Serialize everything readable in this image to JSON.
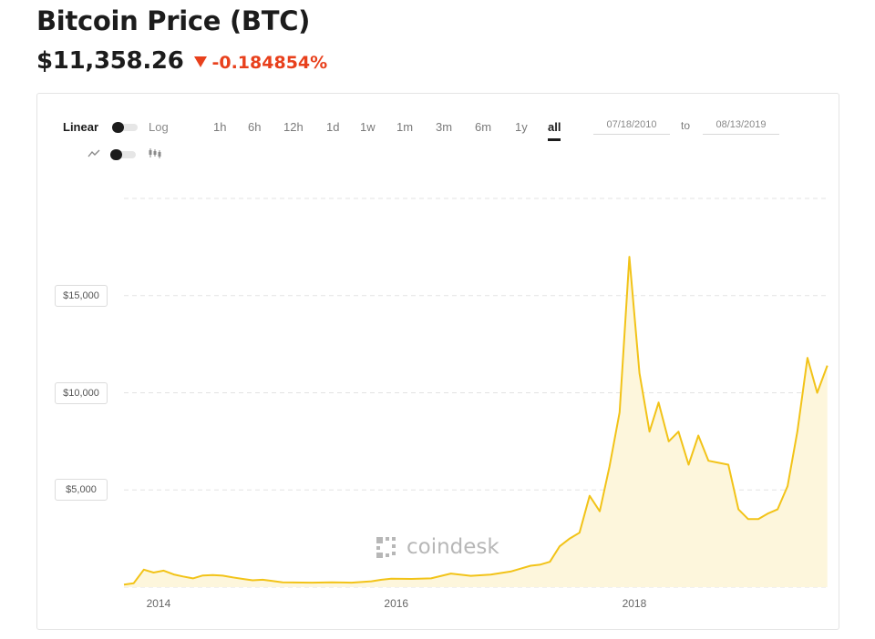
{
  "header": {
    "title": "Bitcoin Price (BTC)",
    "price": "$11,358.26",
    "change": "-0.184854%",
    "change_color": "#e8401c",
    "change_icon": "triangle-down-icon"
  },
  "toolbar": {
    "scale_linear": "Linear",
    "scale_log": "Log",
    "ranges": [
      "1h",
      "6h",
      "12h",
      "1d",
      "1w",
      "1m",
      "3m",
      "6m",
      "1y",
      "all"
    ],
    "active_range": "all",
    "date_from": "07/18/2010",
    "date_to_label": "to",
    "date_to": "08/13/2019",
    "chart_style_icons": [
      "line-chart-icon",
      "candlestick-icon"
    ]
  },
  "watermark": "coindesk",
  "colors": {
    "line": "#f2c318",
    "fill": "#fdf6dc",
    "grid": "#e3e3e3"
  },
  "chart_data": {
    "type": "area",
    "title": "",
    "xlabel": "",
    "ylabel": "",
    "ylim": [
      0,
      20000
    ],
    "grid": true,
    "x_ticks": [
      "2014",
      "2016",
      "2018"
    ],
    "y_ticks": [
      "$5,000",
      "$10,000",
      "$15,000"
    ],
    "y_tick_values": [
      5000,
      10000,
      15000
    ],
    "series": [
      {
        "x": [
          "2013-09",
          "2013-10",
          "2013-11",
          "2013-12",
          "2014-01",
          "2014-02",
          "2014-03",
          "2014-04",
          "2014-05",
          "2014-06",
          "2014-07",
          "2014-08",
          "2014-09",
          "2014-10",
          "2014-11",
          "2014-12",
          "2015-01",
          "2015-02",
          "2015-04",
          "2015-06",
          "2015-08",
          "2015-10",
          "2015-11",
          "2015-12",
          "2016-02",
          "2016-04",
          "2016-06",
          "2016-08",
          "2016-10",
          "2016-12",
          "2017-01",
          "2017-02",
          "2017-03",
          "2017-04",
          "2017-05",
          "2017-06",
          "2017-07",
          "2017-08",
          "2017-09",
          "2017-10",
          "2017-11",
          "2017-12",
          "2018-01",
          "2018-02",
          "2018-03",
          "2018-04",
          "2018-05",
          "2018-06",
          "2018-07",
          "2018-08",
          "2018-09",
          "2018-10",
          "2018-11",
          "2018-12",
          "2019-01",
          "2019-02",
          "2019-03",
          "2019-04",
          "2019-05",
          "2019-06",
          "2019-07",
          "2019-08"
        ],
        "y": [
          130,
          200,
          900,
          750,
          850,
          650,
          550,
          450,
          600,
          620,
          590,
          500,
          420,
          350,
          380,
          320,
          250,
          240,
          230,
          250,
          230,
          300,
          380,
          430,
          420,
          450,
          700,
          580,
          640,
          800,
          950,
          1100,
          1150,
          1300,
          2100,
          2500,
          2800,
          4700,
          3900,
          6200,
          9000,
          17000,
          11000,
          8000,
          9500,
          7500,
          8000,
          6300,
          7800,
          6500,
          6400,
          6300,
          4000,
          3500,
          3500,
          3800,
          4000,
          5200,
          8000,
          11800,
          10000,
          11400
        ]
      }
    ]
  }
}
